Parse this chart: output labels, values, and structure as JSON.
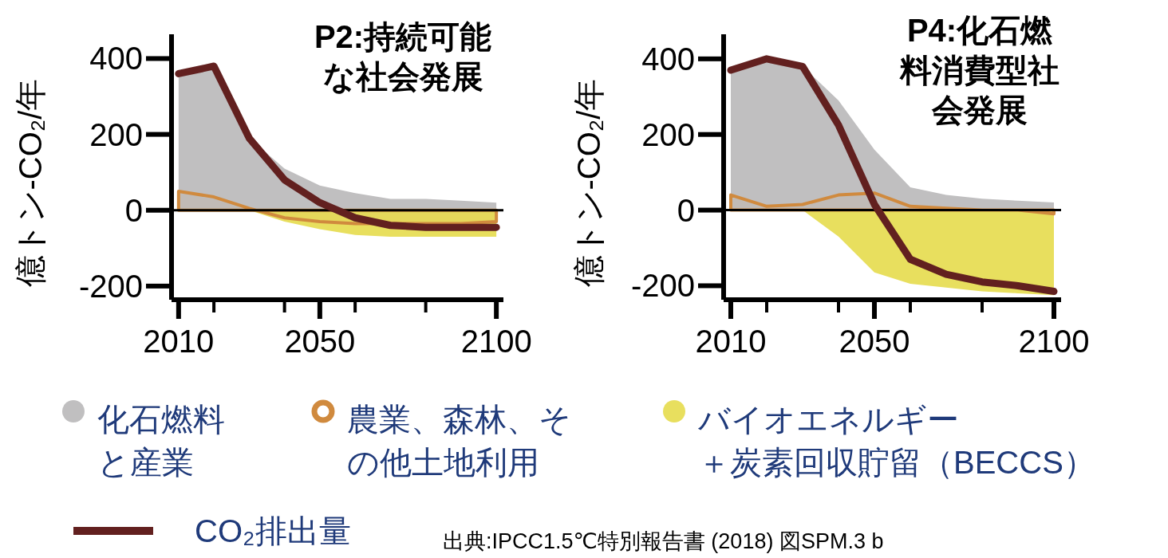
{
  "chart_data": [
    {
      "type": "area",
      "title": "P2:持続可能な社会発展",
      "ylabel": "億トン-CO₂/年",
      "x": [
        2010,
        2020,
        2030,
        2040,
        2050,
        2060,
        2070,
        2080,
        2090,
        2100
      ],
      "series": [
        {
          "name": "化石燃料と産業",
          "type": "area",
          "color": "#c0bfc0",
          "values": [
            360,
            380,
            190,
            110,
            65,
            45,
            30,
            30,
            25,
            20
          ]
        },
        {
          "name": "バイオエネルギー＋炭素回収貯留（BECCS）",
          "type": "area",
          "color": "#e8df5e",
          "values": [
            0,
            0,
            0,
            -30,
            -50,
            -65,
            -70,
            -70,
            -70,
            -70
          ]
        },
        {
          "name": "農業、森林、その他土地利用",
          "type": "area",
          "color": "#d08a3e",
          "values": [
            50,
            35,
            5,
            -20,
            -30,
            -35,
            -35,
            -35,
            -35,
            -30
          ]
        },
        {
          "name": "CO₂排出量",
          "type": "line",
          "color": "#62201f",
          "values": [
            360,
            380,
            190,
            80,
            20,
            -20,
            -40,
            -45,
            -45,
            -45
          ]
        }
      ],
      "xlim": [
        2008,
        2102
      ],
      "ylim": [
        -236,
        464
      ],
      "xticks": [
        2010,
        {
          "value": 2020,
          "label": null
        },
        {
          "value": 2040,
          "label": null
        },
        2050,
        {
          "value": 2060,
          "label": null
        },
        {
          "value": 2080,
          "label": null
        },
        2100
      ],
      "yticks": [
        400,
        200,
        0,
        -200
      ],
      "ref_lines": [
        {
          "axis": "y",
          "value": 0,
          "color": "#000000"
        }
      ],
      "legend": "bottom",
      "grid": false,
      "marker": "none",
      "line_style": "solid",
      "annotations": [
        "出典:IPCC1.5℃特別報告書 (2018)  図SPM.3 b"
      ]
    },
    {
      "type": "area",
      "title": "P4:化石燃料消費型社会発展",
      "ylabel": "億トン-CO₂/年",
      "x": [
        2010,
        2020,
        2030,
        2040,
        2050,
        2060,
        2070,
        2080,
        2090,
        2100
      ],
      "series": [
        {
          "type": "area",
          "color": "#c0bfc0",
          "values": [
            370,
            400,
            380,
            290,
            160,
            60,
            40,
            30,
            25,
            20
          ]
        },
        {
          "type": "area",
          "color": "#e8df5e",
          "values": [
            0,
            0,
            0,
            -70,
            -165,
            -195,
            -205,
            -215,
            -220,
            -225
          ]
        },
        {
          "type": "area",
          "color": "#d08a3e",
          "values": [
            40,
            10,
            15,
            40,
            45,
            10,
            5,
            0,
            0,
            -10
          ]
        },
        {
          "type": "line",
          "color": "#62201f",
          "values": [
            370,
            400,
            380,
            225,
            15,
            -130,
            -170,
            -190,
            -200,
            -215
          ]
        }
      ],
      "xlim": [
        2008,
        2102
      ],
      "ylim": [
        -237,
        465
      ],
      "xticks": [
        2010,
        {
          "value": 2020,
          "label": null
        },
        {
          "value": 2040,
          "label": null
        },
        2050,
        {
          "value": 2060,
          "label": null
        },
        {
          "value": 2080,
          "label": null
        },
        2100
      ],
      "yticks": [
        400,
        200,
        0,
        -200
      ],
      "ref_lines": [
        {
          "axis": "y",
          "value": 0,
          "color": "#000000"
        }
      ],
      "grid": false,
      "marker": "none",
      "line_style": "solid"
    }
  ]
}
